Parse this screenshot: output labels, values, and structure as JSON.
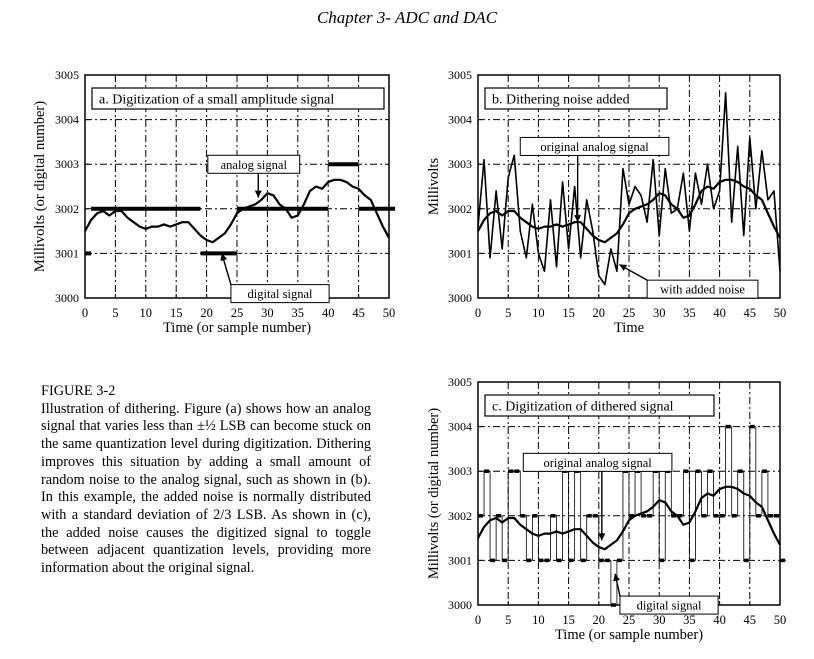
{
  "header": {
    "title": "Chapter 3- ADC and DAC"
  },
  "caption": {
    "label": "FIGURE 3-2",
    "body": "Illustration of dithering.  Figure (a) shows how an analog signal that varies less than ±½ LSB can become stuck on the same quantization level during digitization.  Dithering improves this situation by adding a small amount of random noise to the analog signal, such as shown in (b).  In this example, the added noise is normally distributed with a standard deviation of 2/3 LSB.  As shown in (c), the added noise causes the digitized signal to toggle between adjacent quantization levels, providing more information about the original signal."
  },
  "chart_data": [
    {
      "type": "line",
      "title": "a.  Digitization of a small amplitude signal",
      "xlabel": "Time (or sample number)",
      "ylabel": "Millivolts (or digital number)",
      "xlim": [
        0,
        50
      ],
      "ylim": [
        3000,
        3005
      ],
      "xticks": [
        "0",
        "5",
        "10",
        "15",
        "20",
        "25",
        "30",
        "35",
        "40",
        "45",
        "50"
      ],
      "yticks": [
        "3000",
        "3001",
        "3002",
        "3003",
        "3004",
        "3005"
      ],
      "grid": true,
      "series": [
        {
          "name": "analog signal",
          "x": [
            0,
            1,
            2,
            3,
            4,
            5,
            6,
            7,
            8,
            9,
            10,
            11,
            12,
            13,
            14,
            15,
            16,
            17,
            18,
            19,
            20,
            21,
            22,
            23,
            24,
            25,
            26,
            27,
            28,
            29,
            30,
            31,
            32,
            33,
            34,
            35,
            36,
            37,
            38,
            39,
            40,
            41,
            42,
            43,
            44,
            45,
            46,
            47,
            48,
            49,
            50
          ],
          "values": [
            3001.5,
            3001.75,
            3001.9,
            3001.95,
            3001.85,
            3001.95,
            3001.95,
            3001.8,
            3001.7,
            3001.6,
            3001.55,
            3001.6,
            3001.6,
            3001.65,
            3001.6,
            3001.65,
            3001.7,
            3001.7,
            3001.55,
            3001.4,
            3001.3,
            3001.25,
            3001.35,
            3001.45,
            3001.65,
            3001.9,
            3002.0,
            3002.05,
            3002.1,
            3002.2,
            3002.35,
            3002.3,
            3002.1,
            3002.0,
            3001.8,
            3001.85,
            3002.1,
            3002.4,
            3002.5,
            3002.45,
            3002.6,
            3002.65,
            3002.65,
            3002.6,
            3002.5,
            3002.45,
            3002.3,
            3002.2,
            3001.9,
            3001.6,
            3001.35
          ]
        },
        {
          "name": "digital signal",
          "x": [
            0,
            1,
            2,
            3,
            4,
            5,
            6,
            7,
            8,
            9,
            10,
            11,
            12,
            13,
            14,
            15,
            16,
            17,
            18,
            19,
            20,
            21,
            22,
            23,
            24,
            25,
            26,
            27,
            28,
            29,
            30,
            31,
            32,
            33,
            34,
            35,
            36,
            37,
            38,
            39,
            40,
            41,
            42,
            43,
            44,
            45,
            46,
            47,
            48,
            49,
            50
          ],
          "values": [
            3001,
            3002,
            3002,
            3002,
            3002,
            3002,
            3002,
            3002,
            3002,
            3002,
            3002,
            3002,
            3002,
            3002,
            3002,
            3002,
            3002,
            3002,
            3002,
            3001,
            3001,
            3001,
            3001,
            3001,
            3001,
            3002,
            3002,
            3002,
            3002,
            3002,
            3002,
            3002,
            3002,
            3002,
            3002,
            3002,
            3002,
            3002,
            3002,
            3002,
            3003,
            3003,
            3003,
            3003,
            3003,
            3002,
            3002,
            3002,
            3002,
            3002,
            3002
          ]
        }
      ]
    },
    {
      "type": "line",
      "title": "b.  Dithering noise added",
      "xlabel": "Time",
      "ylabel": "Millivolts",
      "xlim": [
        0,
        50
      ],
      "ylim": [
        3000,
        3005
      ],
      "xticks": [
        "0",
        "5",
        "10",
        "15",
        "20",
        "25",
        "30",
        "35",
        "40",
        "45",
        "50"
      ],
      "yticks": [
        "3000",
        "3001",
        "3002",
        "3003",
        "3004",
        "3005"
      ],
      "grid": true,
      "series": [
        {
          "name": "original analog signal",
          "x": [
            0,
            1,
            2,
            3,
            4,
            5,
            6,
            7,
            8,
            9,
            10,
            11,
            12,
            13,
            14,
            15,
            16,
            17,
            18,
            19,
            20,
            21,
            22,
            23,
            24,
            25,
            26,
            27,
            28,
            29,
            30,
            31,
            32,
            33,
            34,
            35,
            36,
            37,
            38,
            39,
            40,
            41,
            42,
            43,
            44,
            45,
            46,
            47,
            48,
            49,
            50
          ],
          "values": [
            3001.5,
            3001.75,
            3001.9,
            3001.95,
            3001.85,
            3001.95,
            3001.95,
            3001.8,
            3001.7,
            3001.6,
            3001.55,
            3001.6,
            3001.6,
            3001.65,
            3001.6,
            3001.65,
            3001.7,
            3001.7,
            3001.55,
            3001.4,
            3001.3,
            3001.25,
            3001.35,
            3001.45,
            3001.65,
            3001.9,
            3002.0,
            3002.05,
            3002.1,
            3002.2,
            3002.35,
            3002.3,
            3002.1,
            3002.0,
            3001.8,
            3001.85,
            3002.1,
            3002.4,
            3002.5,
            3002.45,
            3002.6,
            3002.65,
            3002.65,
            3002.6,
            3002.5,
            3002.45,
            3002.3,
            3002.2,
            3001.9,
            3001.6,
            3001.35
          ]
        },
        {
          "name": "with added noise",
          "x": [
            0,
            1,
            2,
            3,
            4,
            5,
            6,
            7,
            8,
            9,
            10,
            11,
            12,
            13,
            14,
            15,
            16,
            17,
            18,
            19,
            20,
            21,
            22,
            23,
            24,
            25,
            26,
            27,
            28,
            29,
            30,
            31,
            32,
            33,
            34,
            35,
            36,
            37,
            38,
            39,
            40,
            41,
            42,
            43,
            44,
            45,
            46,
            47,
            48,
            49,
            50
          ],
          "values": [
            3001.6,
            3003.1,
            3000.9,
            3002.4,
            3001.1,
            3002.7,
            3003.2,
            3001.5,
            3000.9,
            3002.1,
            3001.0,
            3000.6,
            3002.2,
            3000.7,
            3002.6,
            3001.1,
            3002.5,
            3000.9,
            3002.2,
            3001.5,
            3000.5,
            3000.3,
            3001.1,
            3000.6,
            3002.9,
            3002.1,
            3002.5,
            3002.3,
            3001.7,
            3003.1,
            3001.4,
            3002.9,
            3001.9,
            3002.0,
            3002.8,
            3001.5,
            3002.8,
            3002.1,
            3003.0,
            3002.0,
            3002.4,
            3004.6,
            3001.7,
            3003.4,
            3001.4,
            3003.6,
            3002.0,
            3003.3,
            3002.2,
            3002.4,
            3000.6
          ]
        }
      ]
    },
    {
      "type": "line",
      "title": "c.  Digitization of dithered signal",
      "xlabel": "Time (or sample number)",
      "ylabel": "Millivolts (or digital number)",
      "xlim": [
        0,
        50
      ],
      "ylim": [
        3000,
        3005
      ],
      "xticks": [
        "0",
        "5",
        "10",
        "15",
        "20",
        "25",
        "30",
        "35",
        "40",
        "45",
        "50"
      ],
      "yticks": [
        "3000",
        "3001",
        "3002",
        "3003",
        "3004",
        "3005"
      ],
      "grid": true,
      "series": [
        {
          "name": "original analog signal",
          "x": [
            0,
            1,
            2,
            3,
            4,
            5,
            6,
            7,
            8,
            9,
            10,
            11,
            12,
            13,
            14,
            15,
            16,
            17,
            18,
            19,
            20,
            21,
            22,
            23,
            24,
            25,
            26,
            27,
            28,
            29,
            30,
            31,
            32,
            33,
            34,
            35,
            36,
            37,
            38,
            39,
            40,
            41,
            42,
            43,
            44,
            45,
            46,
            47,
            48,
            49,
            50
          ],
          "values": [
            3001.5,
            3001.75,
            3001.9,
            3001.95,
            3001.85,
            3001.95,
            3001.95,
            3001.8,
            3001.7,
            3001.6,
            3001.55,
            3001.6,
            3001.6,
            3001.65,
            3001.6,
            3001.65,
            3001.7,
            3001.7,
            3001.55,
            3001.4,
            3001.3,
            3001.25,
            3001.35,
            3001.45,
            3001.65,
            3001.9,
            3002.0,
            3002.05,
            3002.1,
            3002.2,
            3002.35,
            3002.3,
            3002.1,
            3002.0,
            3001.8,
            3001.85,
            3002.1,
            3002.4,
            3002.5,
            3002.45,
            3002.6,
            3002.65,
            3002.65,
            3002.6,
            3002.5,
            3002.45,
            3002.3,
            3002.2,
            3001.9,
            3001.6,
            3001.35
          ]
        },
        {
          "name": "digital signal",
          "x": [
            0,
            1,
            2,
            3,
            4,
            5,
            6,
            7,
            8,
            9,
            10,
            11,
            12,
            13,
            14,
            15,
            16,
            17,
            18,
            19,
            20,
            21,
            22,
            23,
            24,
            25,
            26,
            27,
            28,
            29,
            30,
            31,
            32,
            33,
            34,
            35,
            36,
            37,
            38,
            39,
            40,
            41,
            42,
            43,
            44,
            45,
            46,
            47,
            48,
            49,
            50
          ],
          "values": [
            3002,
            3003,
            3001,
            3002,
            3001,
            3003,
            3003,
            3002,
            3001,
            3002,
            3001,
            3001,
            3002,
            3001,
            3003,
            3001,
            3003,
            3001,
            3002,
            3002,
            3001,
            3001,
            3000,
            3001,
            3003,
            3002,
            3003,
            3002,
            3002,
            3003,
            3001,
            3003,
            3002,
            3002,
            3003,
            3001,
            3003,
            3002,
            3003,
            3002,
            3002,
            3004,
            3002,
            3003,
            3001,
            3004,
            3002,
            3003,
            3002,
            3002,
            3001
          ]
        }
      ]
    }
  ],
  "annotations": {
    "a": [
      {
        "text": "analog signal",
        "box": [
          20.2,
          3003.2
        ],
        "arrow_to": [
          28.5,
          3002.25
        ]
      },
      {
        "text": "digital signal",
        "box": [
          24.0,
          3000.3
        ],
        "arrow_to": [
          22.5,
          3001.0
        ]
      }
    ],
    "b": [
      {
        "text": "original analog signal",
        "box": [
          7.0,
          3003.6
        ],
        "arrow_to": [
          16.5,
          3001.7
        ]
      },
      {
        "text": "with added noise",
        "box": [
          28.0,
          3000.4
        ],
        "arrow_to": [
          23.4,
          3000.75
        ]
      }
    ],
    "c": [
      {
        "text": "original analog signal",
        "box": [
          7.5,
          3003.4
        ],
        "arrow_to": [
          20.5,
          3001.45
        ]
      },
      {
        "text": "digital signal",
        "box": [
          23.5,
          3000.2
        ],
        "arrow_to": [
          22.7,
          3000.7
        ]
      }
    ]
  }
}
